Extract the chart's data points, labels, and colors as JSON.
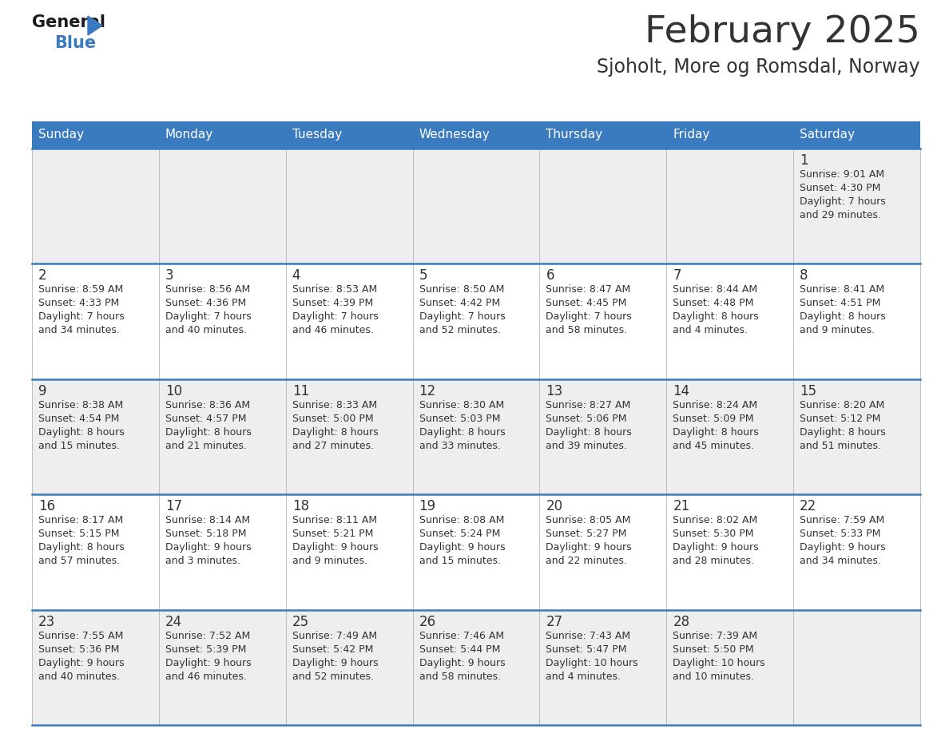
{
  "title": "February 2025",
  "subtitle": "Sjoholt, More og Romsdal, Norway",
  "header_color": "#3a7bbf",
  "header_text_color": "#ffffff",
  "day_names": [
    "Sunday",
    "Monday",
    "Tuesday",
    "Wednesday",
    "Thursday",
    "Friday",
    "Saturday"
  ],
  "background_color": "#ffffff",
  "row_bg": [
    "#eeeeee",
    "#ffffff"
  ],
  "border_color": "#3a7bbf",
  "cell_border_color": "#aaaaaa",
  "text_color": "#333333",
  "logo_black": "#1a1a1a",
  "logo_blue": "#3a7bbf",
  "days": [
    {
      "day": 1,
      "col": 6,
      "row": 0,
      "sunrise": "9:01 AM",
      "sunset": "4:30 PM",
      "daylight": "7 hours and 29 minutes."
    },
    {
      "day": 2,
      "col": 0,
      "row": 1,
      "sunrise": "8:59 AM",
      "sunset": "4:33 PM",
      "daylight": "7 hours and 34 minutes."
    },
    {
      "day": 3,
      "col": 1,
      "row": 1,
      "sunrise": "8:56 AM",
      "sunset": "4:36 PM",
      "daylight": "7 hours and 40 minutes."
    },
    {
      "day": 4,
      "col": 2,
      "row": 1,
      "sunrise": "8:53 AM",
      "sunset": "4:39 PM",
      "daylight": "7 hours and 46 minutes."
    },
    {
      "day": 5,
      "col": 3,
      "row": 1,
      "sunrise": "8:50 AM",
      "sunset": "4:42 PM",
      "daylight": "7 hours and 52 minutes."
    },
    {
      "day": 6,
      "col": 4,
      "row": 1,
      "sunrise": "8:47 AM",
      "sunset": "4:45 PM",
      "daylight": "7 hours and 58 minutes."
    },
    {
      "day": 7,
      "col": 5,
      "row": 1,
      "sunrise": "8:44 AM",
      "sunset": "4:48 PM",
      "daylight": "8 hours and 4 minutes."
    },
    {
      "day": 8,
      "col": 6,
      "row": 1,
      "sunrise": "8:41 AM",
      "sunset": "4:51 PM",
      "daylight": "8 hours and 9 minutes."
    },
    {
      "day": 9,
      "col": 0,
      "row": 2,
      "sunrise": "8:38 AM",
      "sunset": "4:54 PM",
      "daylight": "8 hours and 15 minutes."
    },
    {
      "day": 10,
      "col": 1,
      "row": 2,
      "sunrise": "8:36 AM",
      "sunset": "4:57 PM",
      "daylight": "8 hours and 21 minutes."
    },
    {
      "day": 11,
      "col": 2,
      "row": 2,
      "sunrise": "8:33 AM",
      "sunset": "5:00 PM",
      "daylight": "8 hours and 27 minutes."
    },
    {
      "day": 12,
      "col": 3,
      "row": 2,
      "sunrise": "8:30 AM",
      "sunset": "5:03 PM",
      "daylight": "8 hours and 33 minutes."
    },
    {
      "day": 13,
      "col": 4,
      "row": 2,
      "sunrise": "8:27 AM",
      "sunset": "5:06 PM",
      "daylight": "8 hours and 39 minutes."
    },
    {
      "day": 14,
      "col": 5,
      "row": 2,
      "sunrise": "8:24 AM",
      "sunset": "5:09 PM",
      "daylight": "8 hours and 45 minutes."
    },
    {
      "day": 15,
      "col": 6,
      "row": 2,
      "sunrise": "8:20 AM",
      "sunset": "5:12 PM",
      "daylight": "8 hours and 51 minutes."
    },
    {
      "day": 16,
      "col": 0,
      "row": 3,
      "sunrise": "8:17 AM",
      "sunset": "5:15 PM",
      "daylight": "8 hours and 57 minutes."
    },
    {
      "day": 17,
      "col": 1,
      "row": 3,
      "sunrise": "8:14 AM",
      "sunset": "5:18 PM",
      "daylight": "9 hours and 3 minutes."
    },
    {
      "day": 18,
      "col": 2,
      "row": 3,
      "sunrise": "8:11 AM",
      "sunset": "5:21 PM",
      "daylight": "9 hours and 9 minutes."
    },
    {
      "day": 19,
      "col": 3,
      "row": 3,
      "sunrise": "8:08 AM",
      "sunset": "5:24 PM",
      "daylight": "9 hours and 15 minutes."
    },
    {
      "day": 20,
      "col": 4,
      "row": 3,
      "sunrise": "8:05 AM",
      "sunset": "5:27 PM",
      "daylight": "9 hours and 22 minutes."
    },
    {
      "day": 21,
      "col": 5,
      "row": 3,
      "sunrise": "8:02 AM",
      "sunset": "5:30 PM",
      "daylight": "9 hours and 28 minutes."
    },
    {
      "day": 22,
      "col": 6,
      "row": 3,
      "sunrise": "7:59 AM",
      "sunset": "5:33 PM",
      "daylight": "9 hours and 34 minutes."
    },
    {
      "day": 23,
      "col": 0,
      "row": 4,
      "sunrise": "7:55 AM",
      "sunset": "5:36 PM",
      "daylight": "9 hours and 40 minutes."
    },
    {
      "day": 24,
      "col": 1,
      "row": 4,
      "sunrise": "7:52 AM",
      "sunset": "5:39 PM",
      "daylight": "9 hours and 46 minutes."
    },
    {
      "day": 25,
      "col": 2,
      "row": 4,
      "sunrise": "7:49 AM",
      "sunset": "5:42 PM",
      "daylight": "9 hours and 52 minutes."
    },
    {
      "day": 26,
      "col": 3,
      "row": 4,
      "sunrise": "7:46 AM",
      "sunset": "5:44 PM",
      "daylight": "9 hours and 58 minutes."
    },
    {
      "day": 27,
      "col": 4,
      "row": 4,
      "sunrise": "7:43 AM",
      "sunset": "5:47 PM",
      "daylight": "10 hours and 4 minutes."
    },
    {
      "day": 28,
      "col": 5,
      "row": 4,
      "sunrise": "7:39 AM",
      "sunset": "5:50 PM",
      "daylight": "10 hours and 10 minutes."
    }
  ]
}
